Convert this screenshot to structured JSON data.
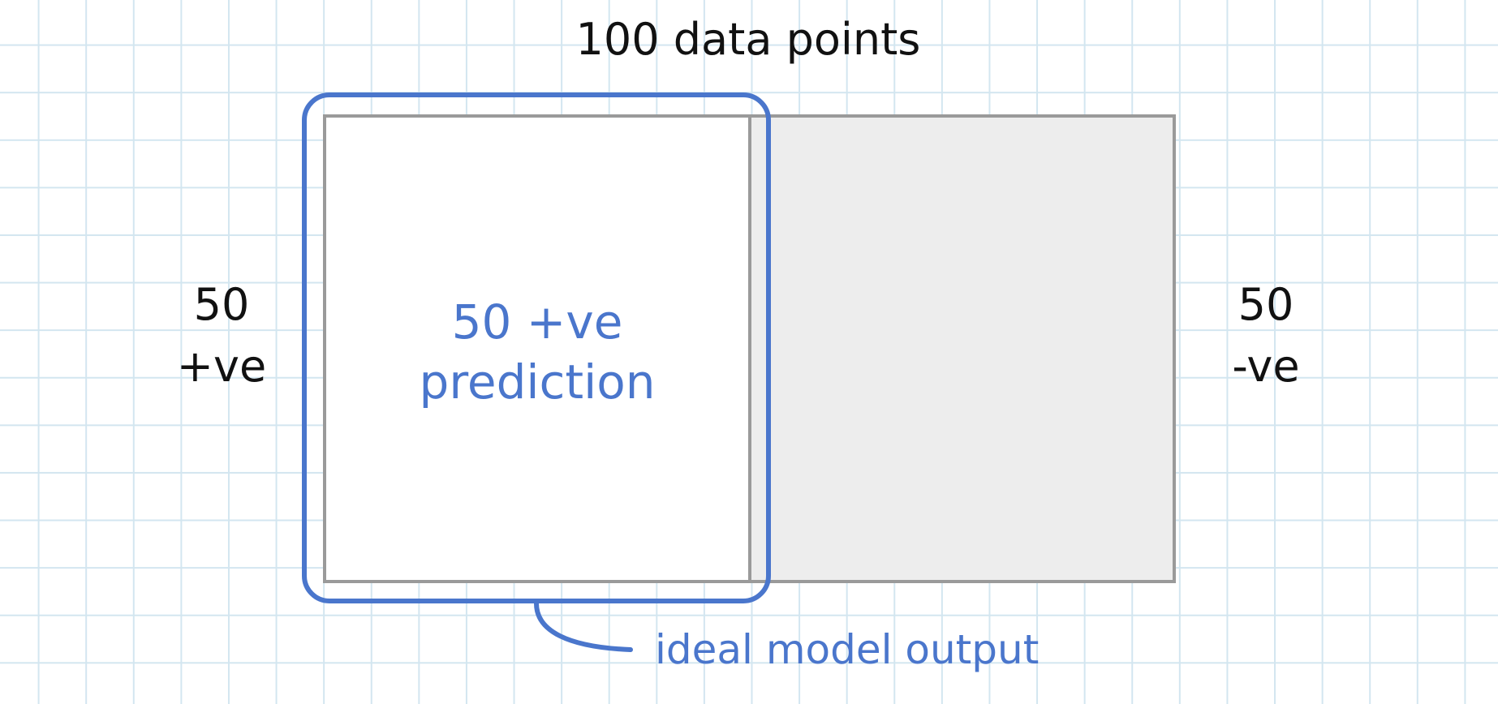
{
  "title": "100 data points",
  "positive": {
    "count": "50",
    "label": "+ve"
  },
  "negative": {
    "count": "50",
    "label": "-ve"
  },
  "prediction": {
    "line1": "50 +ve",
    "line2": "prediction"
  },
  "annotation": "ideal model output",
  "colors": {
    "accent": "#4a76cc",
    "border": "#9a9a9a",
    "negative_fill": "#ededed",
    "grid": "#d3e6f0"
  }
}
